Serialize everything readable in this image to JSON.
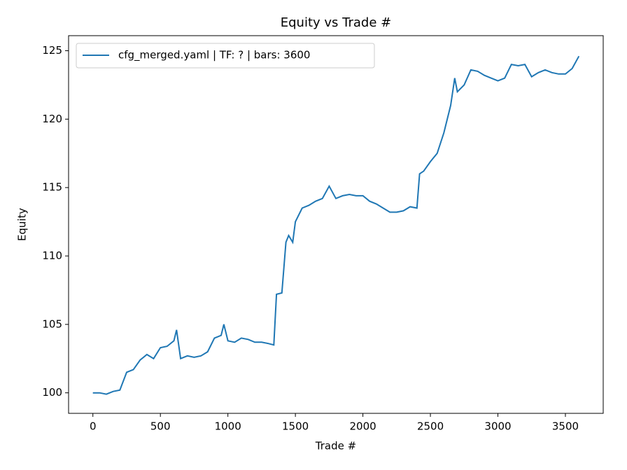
{
  "chart_data": {
    "type": "line",
    "title": "Equity vs Trade #",
    "xlabel": "Trade #",
    "ylabel": "Equity",
    "x": [
      0,
      50,
      100,
      150,
      200,
      250,
      300,
      350,
      400,
      450,
      500,
      550,
      600,
      620,
      650,
      700,
      750,
      800,
      850,
      900,
      950,
      970,
      1000,
      1050,
      1100,
      1150,
      1200,
      1250,
      1300,
      1340,
      1360,
      1400,
      1430,
      1450,
      1480,
      1500,
      1550,
      1600,
      1650,
      1700,
      1750,
      1800,
      1850,
      1900,
      1950,
      2000,
      2050,
      2100,
      2150,
      2200,
      2250,
      2300,
      2350,
      2400,
      2420,
      2450,
      2500,
      2550,
      2600,
      2650,
      2680,
      2700,
      2750,
      2800,
      2850,
      2900,
      2950,
      3000,
      3050,
      3100,
      3150,
      3200,
      3250,
      3300,
      3350,
      3400,
      3450,
      3500,
      3550,
      3600
    ],
    "series": [
      {
        "name": "cfg_merged.yaml | TF: ? | bars: 3600",
        "color": "#1f77b4",
        "values": [
          100,
          100,
          99.9,
          100.1,
          100.2,
          101.5,
          101.7,
          102.4,
          102.8,
          102.5,
          103.3,
          103.4,
          103.8,
          104.6,
          102.5,
          102.7,
          102.6,
          102.7,
          103.0,
          104.0,
          104.2,
          105.0,
          103.8,
          103.7,
          104.0,
          103.9,
          103.7,
          103.7,
          103.6,
          103.5,
          107.2,
          107.3,
          111.0,
          111.5,
          111.0,
          112.5,
          113.5,
          113.7,
          114.0,
          114.2,
          115.1,
          114.2,
          114.4,
          114.5,
          114.4,
          114.4,
          114.0,
          113.8,
          113.5,
          113.2,
          113.2,
          113.3,
          113.6,
          113.5,
          116.0,
          116.2,
          116.9,
          117.5,
          119.0,
          121.0,
          123.0,
          122.0,
          122.5,
          123.6,
          123.5,
          123.2,
          123.0,
          122.8,
          123.0,
          124.0,
          123.9,
          124.0,
          123.1,
          123.4,
          123.6,
          123.4,
          123.3,
          123.3,
          123.7,
          124.6
        ]
      }
    ],
    "xlim": [
      -180,
      3780
    ],
    "ylim": [
      98.5,
      126.1
    ],
    "xticks": [
      0,
      500,
      1000,
      1500,
      2000,
      2500,
      3000,
      3500
    ],
    "yticks": [
      100,
      105,
      110,
      115,
      120,
      125
    ],
    "legend": "upper left"
  }
}
